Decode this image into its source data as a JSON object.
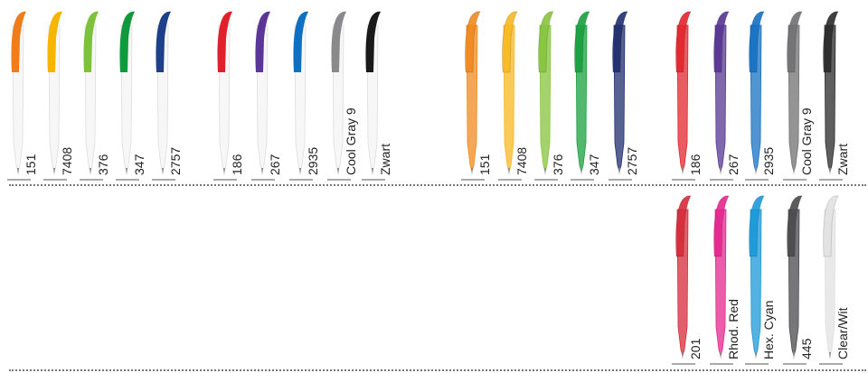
{
  "groups": [
    {
      "style": "white-body",
      "row": 1,
      "items": [
        {
          "label": "151",
          "color": "#f07d1a"
        },
        {
          "label": "7408",
          "color": "#f7b500"
        },
        {
          "label": "376",
          "color": "#7cc23a"
        },
        {
          "label": "347",
          "color": "#0f9a3c"
        },
        {
          "label": "2757",
          "color": "#1e3f8a"
        }
      ]
    },
    {
      "style": "white-body",
      "row": 1,
      "items": [
        {
          "label": "186",
          "color": "#e0202b"
        },
        {
          "label": "267",
          "color": "#5b3696"
        },
        {
          "label": "2935",
          "color": "#0f6fc0"
        },
        {
          "label": "Cool Gray 9",
          "color": "#8a8a8c"
        },
        {
          "label": "Zwart",
          "color": "#1a1a1a"
        }
      ]
    },
    {
      "style": "translucent",
      "row": 1,
      "items": [
        {
          "label": "151",
          "color": "#f08a1e"
        },
        {
          "label": "7408",
          "color": "#f7b820"
        },
        {
          "label": "376",
          "color": "#86c43c"
        },
        {
          "label": "347",
          "color": "#17a03e"
        },
        {
          "label": "2757",
          "color": "#1f2e6e"
        }
      ]
    },
    {
      "style": "translucent",
      "row": 1,
      "items": [
        {
          "label": "186",
          "color": "#e2252e"
        },
        {
          "label": "267",
          "color": "#553592"
        },
        {
          "label": "2935",
          "color": "#1570c2"
        },
        {
          "label": "Cool Gray 9",
          "color": "#707072"
        },
        {
          "label": "Zwart",
          "color": "#2a2a2a"
        }
      ]
    },
    {
      "style": "translucent",
      "row": 2,
      "items": [
        {
          "label": "201",
          "color": "#d52a3a"
        },
        {
          "label": "Rhod. Red",
          "color": "#e4268e"
        },
        {
          "label": "Hex. Cyan",
          "color": "#1a98d8"
        },
        {
          "label": "445",
          "color": "#4a4a4c"
        },
        {
          "label": "Clear/Wit",
          "color": "#e2e2e2"
        }
      ]
    }
  ]
}
